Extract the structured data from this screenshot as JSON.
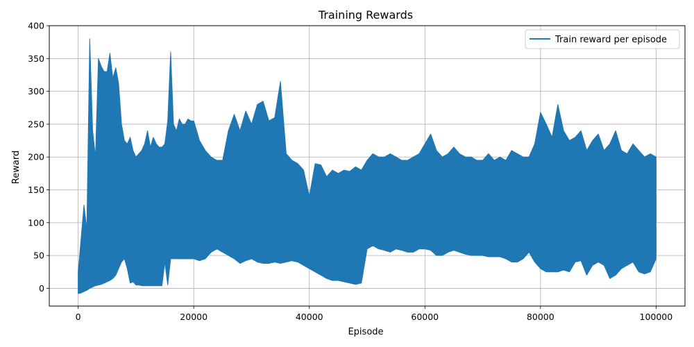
{
  "chart_data": {
    "type": "line",
    "title": "Training Rewards",
    "xlabel": "Episode",
    "ylabel": "Reward",
    "xlim": [
      -5000,
      105000
    ],
    "ylim": [
      -27,
      400
    ],
    "xticks": [
      0,
      20000,
      40000,
      60000,
      80000,
      100000
    ],
    "yticks": [
      0,
      50,
      100,
      150,
      200,
      250,
      300,
      350,
      400
    ],
    "grid": true,
    "legend_position": "top-right",
    "series": [
      {
        "name": "Train reward per episode",
        "color": "#1f77b4",
        "x": [
          0,
          500,
          1000,
          1500,
          2000,
          2500,
          3000,
          3500,
          4000,
          4500,
          5000,
          5500,
          6000,
          6500,
          7000,
          7500,
          8000,
          8500,
          9000,
          9500,
          10000,
          10500,
          11000,
          11500,
          12000,
          12500,
          13000,
          13500,
          14000,
          14500,
          15000,
          15500,
          16000,
          16500,
          17000,
          17500,
          18000,
          18500,
          19000,
          19500,
          20000,
          21000,
          22000,
          23000,
          24000,
          25000,
          26000,
          27000,
          28000,
          29000,
          30000,
          31000,
          32000,
          33000,
          34000,
          35000,
          36000,
          37000,
          38000,
          39000,
          40000,
          41000,
          42000,
          43000,
          44000,
          45000,
          46000,
          47000,
          48000,
          49000,
          50000,
          51000,
          52000,
          53000,
          54000,
          55000,
          56000,
          57000,
          58000,
          59000,
          60000,
          61000,
          62000,
          63000,
          64000,
          65000,
          66000,
          67000,
          68000,
          69000,
          70000,
          71000,
          72000,
          73000,
          74000,
          75000,
          76000,
          77000,
          78000,
          79000,
          80000,
          81000,
          82000,
          83000,
          84000,
          85000,
          86000,
          87000,
          88000,
          89000,
          90000,
          91000,
          92000,
          93000,
          94000,
          95000,
          96000,
          97000,
          98000,
          99000,
          100000
        ],
        "min": [
          -8,
          -7,
          -5,
          -3,
          0,
          2,
          4,
          5,
          6,
          8,
          10,
          12,
          15,
          20,
          30,
          40,
          45,
          30,
          8,
          10,
          5,
          5,
          4,
          4,
          4,
          4,
          4,
          4,
          4,
          4,
          40,
          5,
          45,
          45,
          45,
          45,
          45,
          45,
          45,
          45,
          45,
          42,
          45,
          55,
          60,
          55,
          50,
          45,
          38,
          42,
          45,
          40,
          38,
          38,
          40,
          38,
          40,
          42,
          40,
          35,
          30,
          25,
          20,
          15,
          12,
          12,
          10,
          8,
          6,
          8,
          60,
          65,
          60,
          58,
          55,
          60,
          58,
          55,
          55,
          60,
          60,
          58,
          50,
          50,
          55,
          58,
          55,
          52,
          50,
          50,
          50,
          48,
          48,
          48,
          45,
          40,
          40,
          45,
          55,
          40,
          30,
          25,
          25,
          25,
          28,
          25,
          40,
          42,
          20,
          35,
          40,
          35,
          15,
          20,
          30,
          35,
          40,
          25,
          22,
          25,
          45
        ],
        "max": [
          25,
          75,
          127,
          90,
          380,
          240,
          200,
          350,
          338,
          330,
          330,
          358,
          320,
          336,
          312,
          250,
          225,
          220,
          230,
          210,
          200,
          205,
          210,
          220,
          240,
          215,
          230,
          220,
          215,
          215,
          220,
          255,
          360,
          250,
          240,
          258,
          250,
          250,
          258,
          255,
          255,
          225,
          210,
          200,
          195,
          195,
          240,
          265,
          240,
          270,
          250,
          280,
          285,
          255,
          260,
          315,
          205,
          195,
          190,
          180,
          140,
          190,
          188,
          170,
          180,
          175,
          180,
          178,
          185,
          180,
          195,
          205,
          200,
          200,
          205,
          200,
          195,
          195,
          200,
          205,
          220,
          235,
          210,
          200,
          205,
          215,
          205,
          200,
          200,
          195,
          195,
          205,
          195,
          200,
          195,
          210,
          205,
          200,
          200,
          220,
          268,
          250,
          230,
          280,
          240,
          225,
          230,
          240,
          210,
          225,
          235,
          210,
          220,
          240,
          210,
          205,
          220,
          210,
          200,
          205,
          200
        ]
      }
    ]
  }
}
